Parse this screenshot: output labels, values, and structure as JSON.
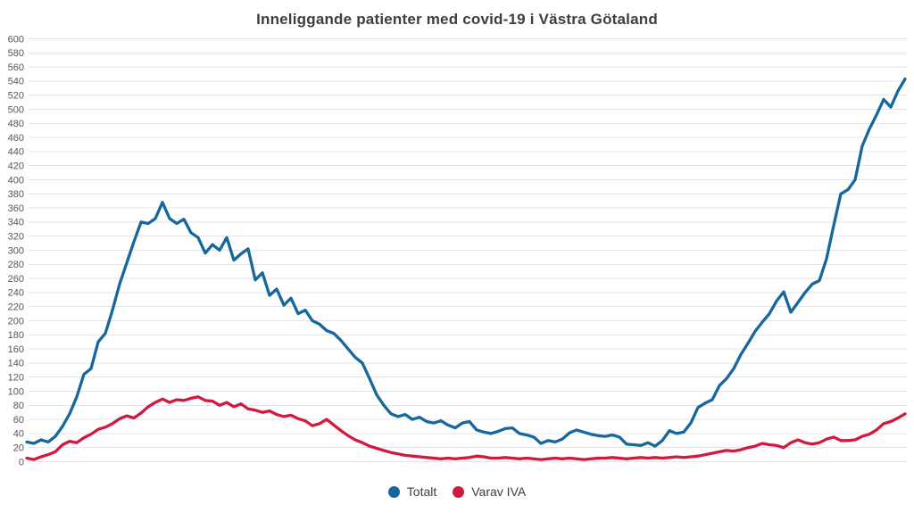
{
  "chart_data": {
    "type": "line",
    "title": "Inneliggande patienter med covid-19 i Västra Götaland",
    "xlabel": "",
    "ylabel": "",
    "grid": true,
    "legend_position": "bottom",
    "x_axis": {
      "tick_labels": []
    },
    "y_axis": {
      "min": 0,
      "max": 600,
      "step": 20,
      "tick_labels": [
        "0",
        "20",
        "40",
        "60",
        "80",
        "100",
        "120",
        "140",
        "160",
        "180",
        "200",
        "220",
        "240",
        "260",
        "280",
        "300",
        "320",
        "340",
        "360",
        "380",
        "400",
        "420",
        "440",
        "460",
        "480",
        "500",
        "520",
        "540",
        "560",
        "580",
        "600"
      ]
    },
    "style": {
      "grid_color": "#e4e4e4",
      "tick_label_color": "#565656",
      "title_color": "#3e3e3e",
      "background": "#ffffff"
    },
    "series": [
      {
        "name": "Totalt",
        "color": "#16689c",
        "values": [
          28,
          26,
          31,
          28,
          36,
          50,
          68,
          92,
          124,
          132,
          170,
          182,
          215,
          252,
          282,
          312,
          340,
          338,
          345,
          368,
          345,
          338,
          344,
          325,
          318,
          296,
          308,
          300,
          318,
          286,
          295,
          302,
          258,
          268,
          236,
          245,
          222,
          232,
          210,
          215,
          200,
          195,
          186,
          182,
          172,
          160,
          148,
          140,
          118,
          95,
          80,
          68,
          64,
          67,
          60,
          63,
          57,
          55,
          58,
          52,
          48,
          55,
          57,
          45,
          42,
          40,
          43,
          47,
          48,
          40,
          38,
          35,
          26,
          30,
          28,
          32,
          41,
          45,
          42,
          39,
          37,
          36,
          38,
          35,
          25,
          24,
          23,
          27,
          22,
          30,
          44,
          40,
          42,
          55,
          77,
          83,
          88,
          108,
          118,
          132,
          152,
          168,
          185,
          198,
          210,
          228,
          241,
          212,
          226,
          240,
          252,
          257,
          288,
          335,
          380,
          386,
          400,
          448,
          472,
          492,
          514,
          503,
          526,
          543
        ]
      },
      {
        "name": "Varav IVA",
        "color": "#d11a3e",
        "values": [
          5,
          3,
          7,
          10,
          14,
          24,
          29,
          27,
          34,
          39,
          46,
          49,
          54,
          61,
          65,
          62,
          69,
          78,
          84,
          89,
          84,
          88,
          87,
          90,
          92,
          87,
          86,
          80,
          84,
          78,
          82,
          75,
          73,
          70,
          72,
          67,
          64,
          66,
          61,
          58,
          51,
          54,
          60,
          52,
          44,
          37,
          31,
          27,
          22,
          19,
          16,
          13,
          11,
          9,
          8,
          7,
          6,
          5,
          4,
          5,
          4,
          5,
          6,
          8,
          7,
          5,
          5,
          6,
          5,
          4,
          5,
          4,
          3,
          4,
          5,
          4,
          5,
          4,
          3,
          4,
          5,
          5,
          6,
          5,
          4,
          5,
          6,
          5,
          6,
          5,
          6,
          7,
          6,
          7,
          8,
          10,
          12,
          14,
          16,
          15,
          17,
          20,
          22,
          26,
          24,
          23,
          20,
          27,
          31,
          27,
          25,
          27,
          32,
          35,
          30,
          30,
          31,
          36,
          39,
          45,
          54,
          57,
          62,
          68
        ]
      }
    ]
  }
}
